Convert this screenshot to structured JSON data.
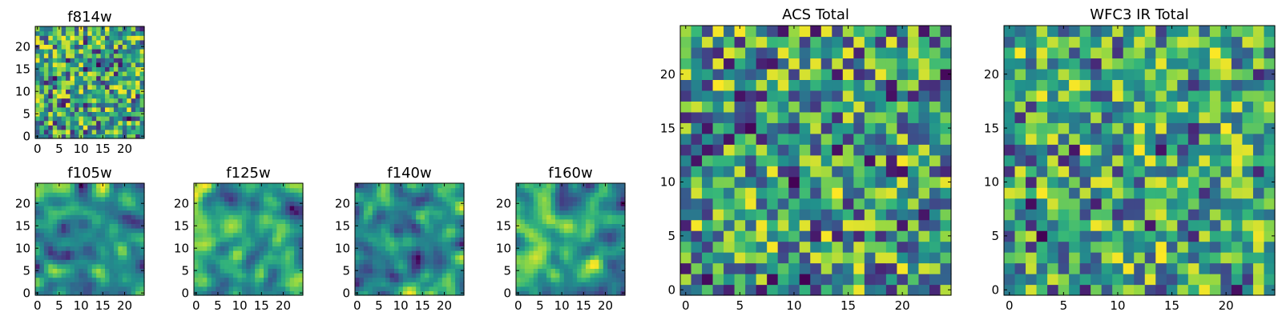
{
  "chart_data": [
    {
      "type": "heatmap",
      "title": "f814w",
      "colormap": "viridis",
      "grid_size": 25,
      "seed": 11,
      "smooth": 0,
      "bias": 0.55,
      "xlim": [
        0,
        24
      ],
      "ylim": [
        0,
        24
      ],
      "xticks": [
        0,
        5,
        10,
        15,
        20
      ],
      "yticks": [
        0,
        5,
        10,
        15,
        20
      ],
      "xtick_labels": [
        "0",
        "5",
        "10",
        "15",
        "20"
      ],
      "ytick_labels": [
        "0",
        "5",
        "10",
        "15",
        "20"
      ],
      "xlabel": "",
      "ylabel": ""
    },
    {
      "type": "heatmap",
      "title": "f105w",
      "colormap": "viridis",
      "grid_size": 25,
      "seed": 23,
      "smooth": 2,
      "bias": 0.55,
      "xlim": [
        0,
        24
      ],
      "ylim": [
        0,
        24
      ],
      "xticks": [
        0,
        5,
        10,
        15,
        20
      ],
      "yticks": [
        0,
        5,
        10,
        15,
        20
      ],
      "xtick_labels": [
        "0",
        "5",
        "10",
        "15",
        "20"
      ],
      "ytick_labels": [
        "0",
        "5",
        "10",
        "15",
        "20"
      ],
      "xlabel": "",
      "ylabel": ""
    },
    {
      "type": "heatmap",
      "title": "f125w",
      "colormap": "viridis",
      "grid_size": 25,
      "seed": 37,
      "smooth": 2,
      "bias": 0.55,
      "xlim": [
        0,
        24
      ],
      "ylim": [
        0,
        24
      ],
      "xticks": [
        0,
        5,
        10,
        15,
        20
      ],
      "yticks": [
        0,
        5,
        10,
        15,
        20
      ],
      "xtick_labels": [
        "0",
        "5",
        "10",
        "15",
        "20"
      ],
      "ytick_labels": [
        "0",
        "5",
        "10",
        "15",
        "20"
      ],
      "xlabel": "",
      "ylabel": ""
    },
    {
      "type": "heatmap",
      "title": "f140w",
      "colormap": "viridis",
      "grid_size": 25,
      "seed": 41,
      "smooth": 2,
      "bias": 0.6,
      "xlim": [
        0,
        24
      ],
      "ylim": [
        0,
        24
      ],
      "xticks": [
        0,
        5,
        10,
        15,
        20
      ],
      "yticks": [
        0,
        5,
        10,
        15,
        20
      ],
      "xtick_labels": [
        "0",
        "5",
        "10",
        "15",
        "20"
      ],
      "ytick_labels": [
        "0",
        "5",
        "10",
        "15",
        "20"
      ],
      "xlabel": "",
      "ylabel": ""
    },
    {
      "type": "heatmap",
      "title": "f160w",
      "colormap": "viridis",
      "grid_size": 25,
      "seed": 53,
      "smooth": 2,
      "bias": 0.6,
      "xlim": [
        0,
        24
      ],
      "ylim": [
        0,
        24
      ],
      "xticks": [
        0,
        5,
        10,
        15,
        20
      ],
      "yticks": [
        0,
        5,
        10,
        15,
        20
      ],
      "xtick_labels": [
        "0",
        "5",
        "10",
        "15",
        "20"
      ],
      "ytick_labels": [
        "0",
        "5",
        "10",
        "15",
        "20"
      ],
      "xlabel": "",
      "ylabel": ""
    },
    {
      "type": "heatmap",
      "title": "ACS Total",
      "colormap": "viridis",
      "grid_size": 25,
      "seed": 67,
      "smooth": 0,
      "bias": 0.65,
      "xlim": [
        0,
        24
      ],
      "ylim": [
        0,
        24
      ],
      "xticks": [
        0,
        5,
        10,
        15,
        20
      ],
      "yticks": [
        0,
        5,
        10,
        15,
        20
      ],
      "xtick_labels": [
        "0",
        "5",
        "10",
        "15",
        "20"
      ],
      "ytick_labels": [
        "0",
        "5",
        "10",
        "15",
        "20"
      ],
      "xlabel": "",
      "ylabel": ""
    },
    {
      "type": "heatmap",
      "title": "WFC3 IR Total",
      "colormap": "viridis",
      "grid_size": 25,
      "seed": 79,
      "smooth": 0,
      "bias": 0.5,
      "xlim": [
        0,
        24
      ],
      "ylim": [
        0,
        24
      ],
      "xticks": [
        0,
        5,
        10,
        15,
        20
      ],
      "yticks": [
        0,
        5,
        10,
        15,
        20
      ],
      "xtick_labels": [
        "0",
        "5",
        "10",
        "15",
        "20"
      ],
      "ytick_labels": [
        "0",
        "5",
        "10",
        "15",
        "20"
      ],
      "xlabel": "",
      "ylabel": ""
    }
  ]
}
